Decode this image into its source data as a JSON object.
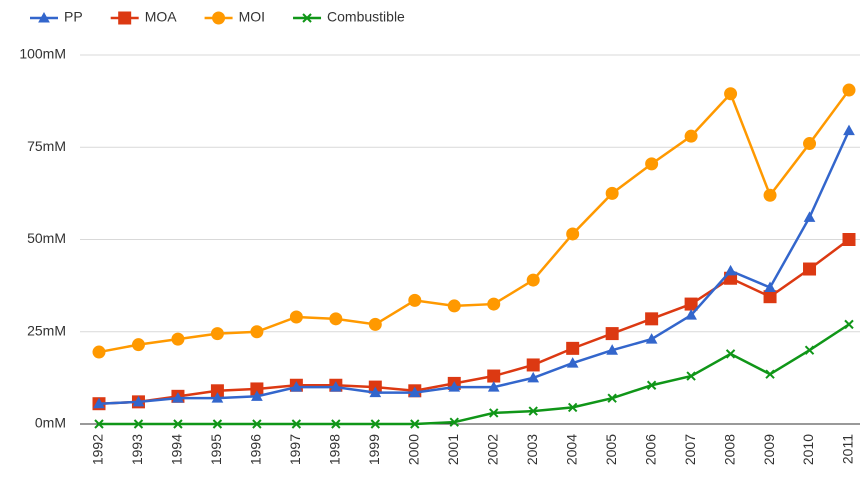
{
  "chart_data": {
    "type": "line",
    "categories": [
      "1992",
      "1993",
      "1994",
      "1995",
      "1996",
      "1997",
      "1998",
      "1999",
      "2000",
      "2001",
      "2002",
      "2003",
      "2004",
      "2005",
      "2006",
      "2007",
      "2008",
      "2009",
      "2010",
      "2011"
    ],
    "series": [
      {
        "name": "PP",
        "color": "#3366cc",
        "marker": "triangle",
        "values": [
          5.5,
          6,
          7,
          7,
          7.5,
          10,
          10,
          8.5,
          8.5,
          10,
          10,
          12.5,
          16.5,
          20,
          23,
          29.5,
          41.5,
          37,
          56,
          79.5
        ]
      },
      {
        "name": "MOA",
        "color": "#dc3912",
        "marker": "square",
        "values": [
          5.5,
          6,
          7.5,
          9,
          9.5,
          10.5,
          10.5,
          10,
          9,
          11,
          13,
          16,
          20.5,
          24.5,
          28.5,
          32.5,
          39.5,
          34.5,
          42,
          50
        ]
      },
      {
        "name": "MOI",
        "color": "#ff9900",
        "marker": "circle",
        "values": [
          19.5,
          21.5,
          23,
          24.5,
          25,
          29,
          28.5,
          27,
          33.5,
          32,
          32.5,
          39,
          51.5,
          62.5,
          70.5,
          78,
          89.5,
          62,
          76,
          90.5
        ]
      },
      {
        "name": "Combustible",
        "color": "#109618",
        "marker": "x",
        "values": [
          0,
          0,
          0,
          0,
          0,
          0,
          0,
          0,
          0,
          0.5,
          3,
          3.5,
          4.5,
          7,
          10.5,
          13,
          19,
          13.5,
          20,
          27
        ]
      }
    ],
    "ylim": [
      0,
      100
    ],
    "yticks": [
      {
        "value": 0,
        "label": "0mM"
      },
      {
        "value": 25,
        "label": "25mM"
      },
      {
        "value": 50,
        "label": "50mM"
      },
      {
        "value": 75,
        "label": "75mM"
      },
      {
        "value": 100,
        "label": "100mM"
      }
    ],
    "grid": true,
    "legend": "top"
  }
}
